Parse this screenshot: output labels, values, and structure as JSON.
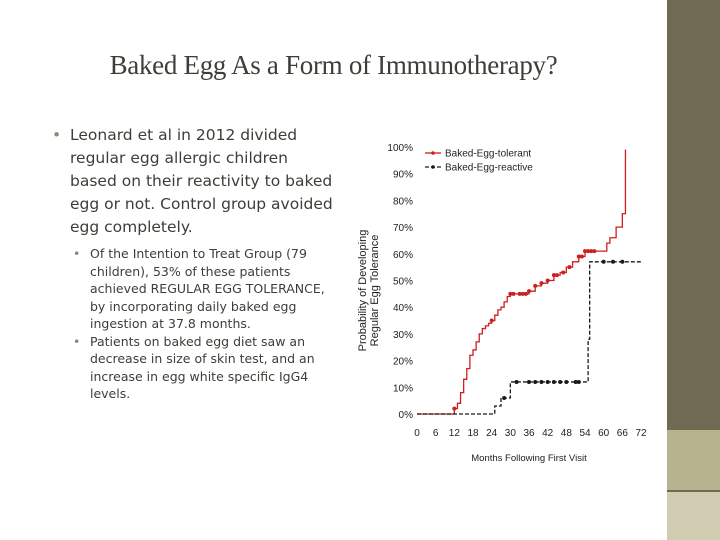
{
  "slide": {
    "title": "Baked Egg As a Form of Immunotherapy?",
    "bullets": [
      {
        "text": "Leonard et al in 2012 divided regular egg allergic children based on their reactivity to baked egg or not. Control group avoided egg completely.",
        "sub": [
          "Of the Intention to Treat Group (79 children), 53% of these patients achieved REGULAR EGG TOLERANCE, by incorporating daily baked egg ingestion at 37.8 months.",
          "Patients on baked egg diet saw an decrease in size of skin test, and an increase in egg white specific IgG4 levels."
        ]
      }
    ],
    "colors": {
      "sidebar_dark": "#6e6a53",
      "sidebar_light": "#b7b38e",
      "text": "#3f3d36"
    }
  },
  "chart_data": {
    "type": "line",
    "step": true,
    "ylabel": "Probability of Developing Regular Egg Tolerance",
    "xlabel": "Months Following First Visit",
    "x_ticks": [
      "0",
      "6",
      "12",
      "18",
      "24",
      "30",
      "36",
      "42",
      "48",
      "54",
      "60",
      "66",
      "72"
    ],
    "y_ticks": [
      "0%",
      "10%",
      "20%",
      "30%",
      "40%",
      "50%",
      "60%",
      "70%",
      "80%",
      "90%",
      "100%"
    ],
    "xlim": [
      0,
      72
    ],
    "ylim": [
      0,
      100
    ],
    "legend_position": "top-left",
    "series": [
      {
        "name": "Baked-Egg-tolerant",
        "color": "#cc1f1f",
        "line_style": "solid",
        "points": [
          [
            0,
            0
          ],
          [
            6,
            0
          ],
          [
            12,
            2
          ],
          [
            13,
            4
          ],
          [
            14,
            8
          ],
          [
            15,
            13
          ],
          [
            16,
            17
          ],
          [
            17,
            22
          ],
          [
            18,
            24
          ],
          [
            19,
            27
          ],
          [
            20,
            30
          ],
          [
            21,
            32
          ],
          [
            22,
            33
          ],
          [
            23,
            34
          ],
          [
            24,
            35
          ],
          [
            25,
            37
          ],
          [
            26,
            39
          ],
          [
            27,
            40
          ],
          [
            28,
            42
          ],
          [
            29,
            44
          ],
          [
            30,
            45
          ],
          [
            33,
            45
          ],
          [
            36,
            46
          ],
          [
            38,
            48
          ],
          [
            40,
            49
          ],
          [
            42,
            50
          ],
          [
            44,
            52
          ],
          [
            46,
            53
          ],
          [
            48,
            55
          ],
          [
            50,
            57
          ],
          [
            52,
            59
          ],
          [
            54,
            61
          ],
          [
            60,
            61
          ],
          [
            61,
            64
          ],
          [
            62,
            66
          ],
          [
            64,
            70
          ],
          [
            66,
            75
          ],
          [
            67,
            99
          ]
        ],
        "censored_x": [
          12,
          24,
          30,
          31,
          33,
          34,
          35,
          36,
          38,
          40,
          42,
          44,
          45,
          47,
          49,
          52,
          53,
          54,
          55,
          56,
          57
        ]
      },
      {
        "name": "Baked-Egg-reactive",
        "color": "#1a1a1a",
        "line_style": "dashed",
        "points": [
          [
            0,
            0
          ],
          [
            24,
            0
          ],
          [
            25,
            3
          ],
          [
            27,
            6
          ],
          [
            30,
            12
          ],
          [
            54,
            12
          ],
          [
            55,
            28
          ],
          [
            55.5,
            57
          ],
          [
            72,
            57
          ]
        ],
        "censored_x": [
          28,
          32,
          36,
          38,
          40,
          42,
          44,
          46,
          48,
          51,
          52,
          60,
          63,
          66
        ]
      }
    ]
  }
}
